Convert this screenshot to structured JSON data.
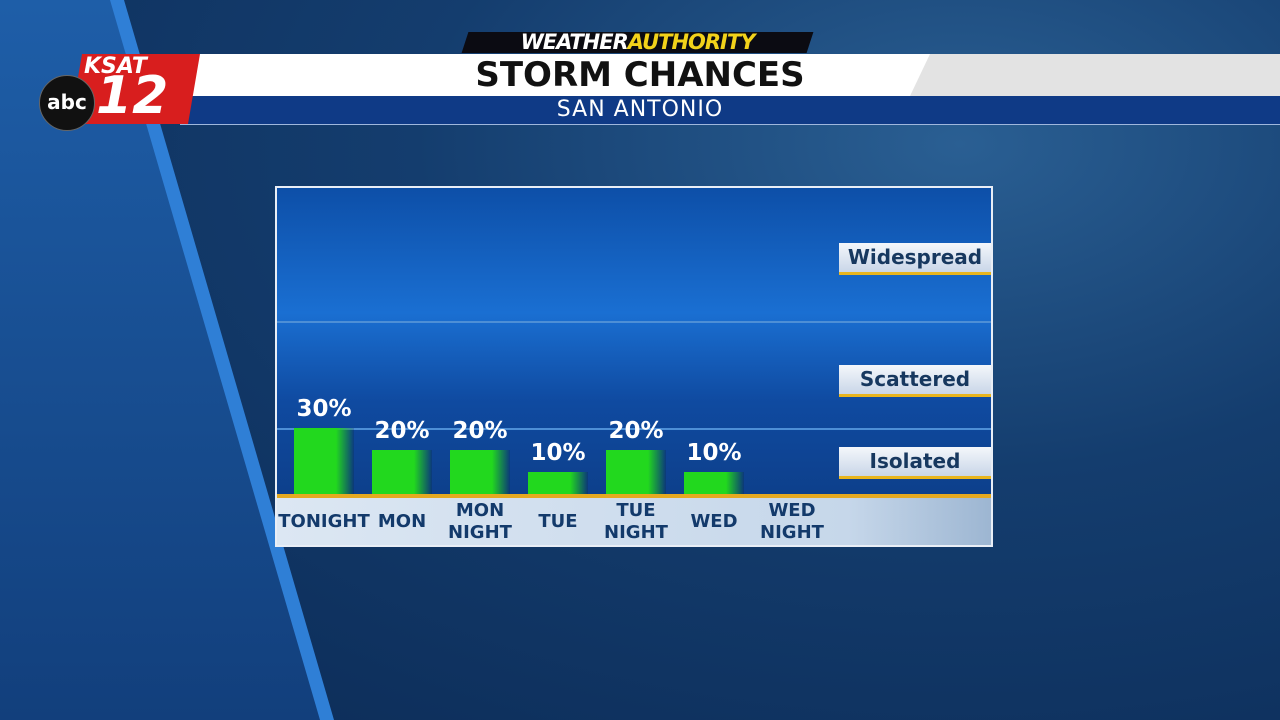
{
  "header": {
    "brand_prefix": "WEATHER",
    "brand_suffix": "AUTHORITY",
    "station": "KSAT",
    "channel": "12",
    "network": "abc",
    "title": "STORM CHANCES",
    "subtitle": "SAN ANTONIO"
  },
  "chart_data": {
    "type": "bar",
    "categories": [
      "TONIGHT",
      "MON",
      "MON NIGHT",
      "TUE",
      "TUE NIGHT",
      "WED",
      "WED NIGHT"
    ],
    "values": [
      30,
      20,
      20,
      10,
      20,
      10,
      null
    ],
    "value_labels": [
      "30%",
      "20%",
      "20%",
      "10%",
      "20%",
      "10%",
      null
    ],
    "color": "#22d81e",
    "ylim": [
      0,
      140
    ],
    "bands": [
      "Widespread",
      "Scattered",
      "Isolated"
    ]
  }
}
